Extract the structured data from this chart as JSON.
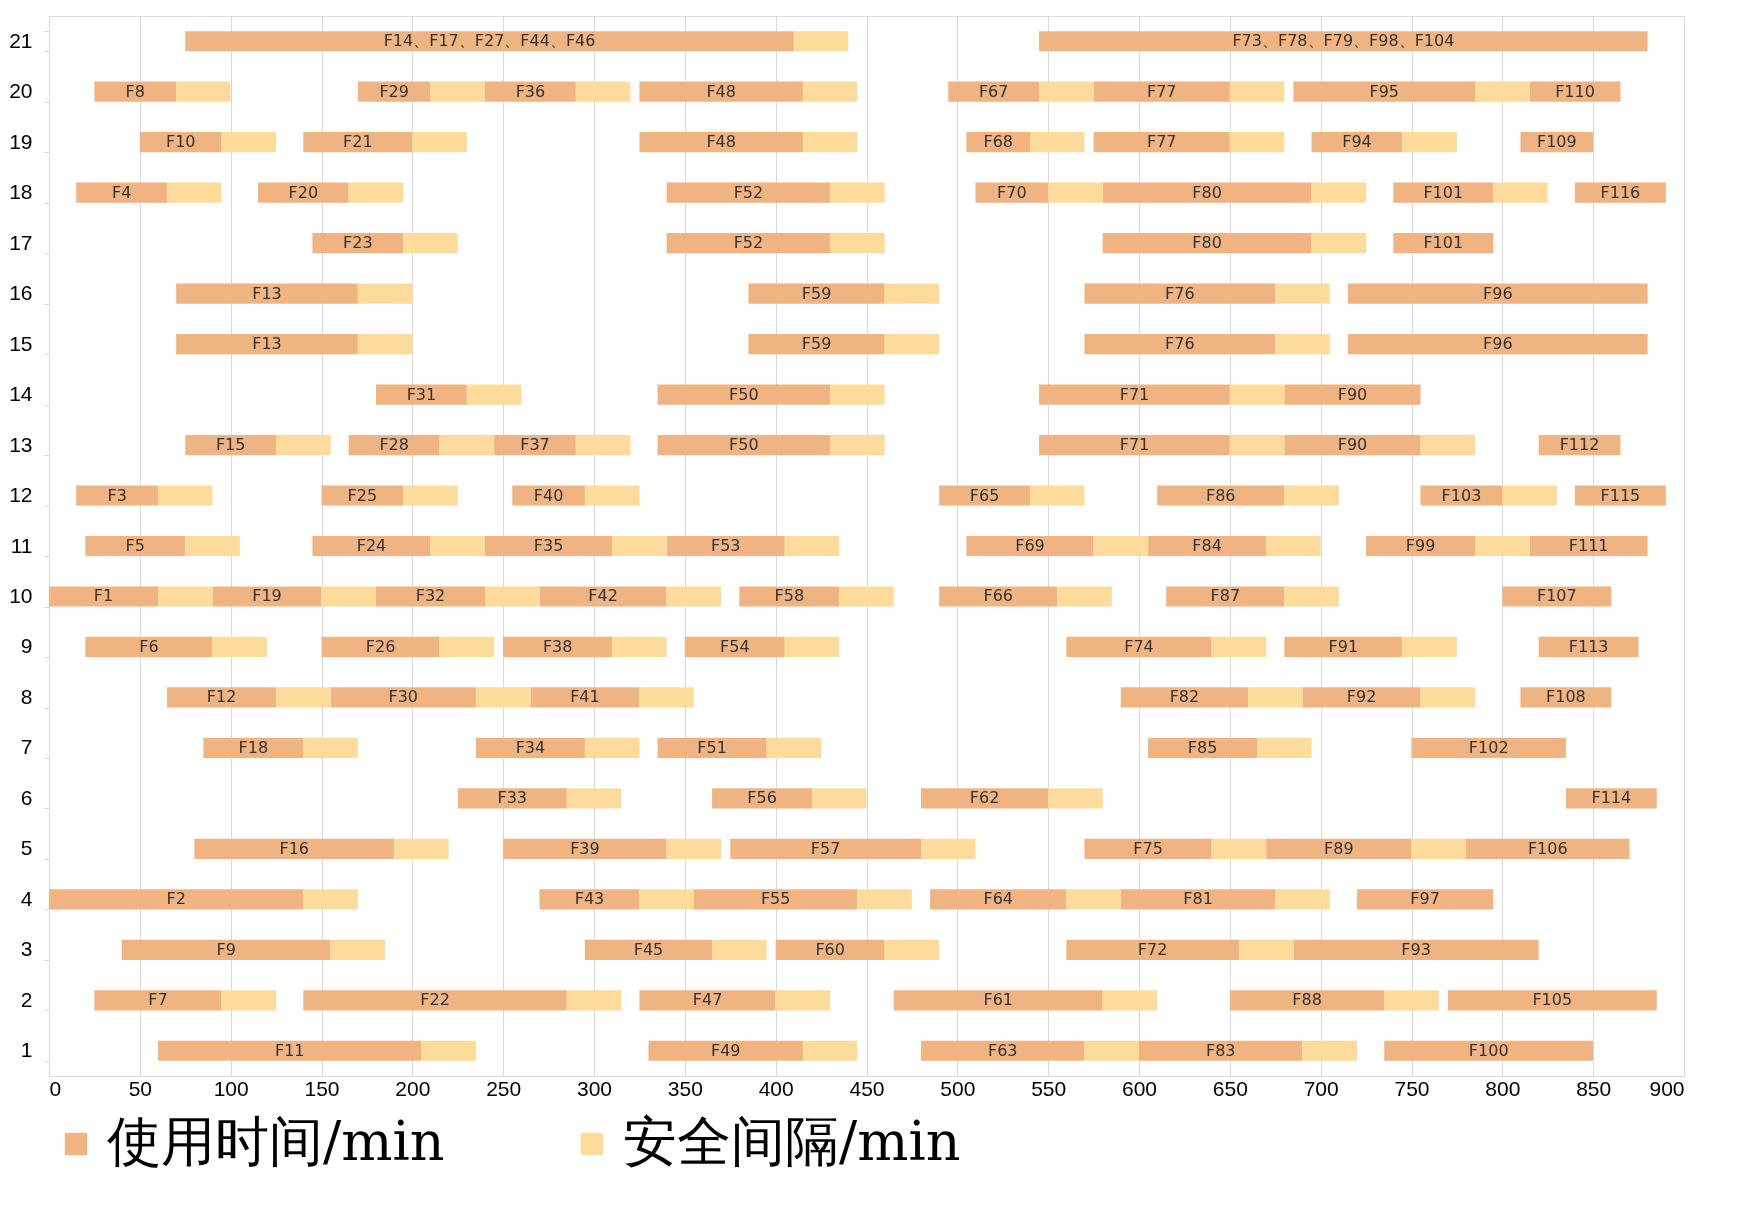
{
  "chart_data": {
    "type": "bar",
    "orientation": "horizontal",
    "legend": "bottom",
    "grid": "x",
    "categories": [
      "21",
      "20",
      "19",
      "18",
      "17",
      "16",
      "15",
      "14",
      "13",
      "12",
      "11",
      "10",
      "9",
      "8",
      "7",
      "6",
      "5",
      "4",
      "3",
      "2",
      "1"
    ],
    "xlim": [
      0,
      900
    ],
    "xticks": [
      0,
      50,
      100,
      150,
      200,
      250,
      300,
      350,
      400,
      450,
      500,
      550,
      600,
      650,
      700,
      750,
      800,
      850,
      900
    ],
    "series": [
      {
        "name": "使用时间/min",
        "color": "#f0b482",
        "base": [
          75,
          25,
          50,
          15,
          145,
          70,
          70,
          180,
          75,
          15,
          20,
          0,
          20,
          65,
          85,
          225,
          80,
          0,
          40,
          25,
          60
        ],
        "values": [
          335,
          45,
          45,
          50,
          50,
          100,
          100,
          50,
          50,
          45,
          55,
          60,
          70,
          60,
          55,
          60,
          110,
          140,
          115,
          70,
          145
        ],
        "value_labels": [
          "F14、F17、F27、F44、F46",
          "F8",
          "F10",
          "F4",
          "F23",
          "F13",
          "F13",
          "F31",
          "F15",
          "F3",
          "F5",
          "F1",
          "F6",
          "F12",
          "F18",
          "F33",
          "F16",
          "F2",
          "F9",
          "F7",
          "F11"
        ]
      },
      {
        "color": "#f0b482",
        "base": [
          545,
          170,
          140,
          115,
          340,
          385,
          385,
          335,
          165,
          150,
          145,
          90,
          150,
          155,
          235,
          365,
          250,
          270,
          295,
          140,
          330
        ],
        "values": [
          335,
          40,
          60,
          50,
          90,
          75,
          75,
          95,
          50,
          45,
          65,
          60,
          65,
          80,
          60,
          55,
          90,
          55,
          70,
          145,
          85
        ],
        "value_labels": [
          "F73、F78、F79、F98、F104",
          "F29",
          "F21",
          "F20",
          "F52",
          "F59",
          "F59",
          "F50",
          "F28",
          "F25",
          "F24",
          "F19",
          "F26",
          "F30",
          "F34",
          "F56",
          "F39",
          "F43",
          "F45",
          "F22",
          "F49"
        ]
      },
      {
        "color": "#f0b482",
        "base": [
          null,
          240,
          325,
          340,
          580,
          570,
          570,
          545,
          245,
          255,
          240,
          180,
          250,
          265,
          335,
          480,
          375,
          355,
          400,
          325,
          480
        ],
        "values": [
          null,
          50,
          90,
          90,
          115,
          105,
          105,
          105,
          45,
          40,
          70,
          60,
          60,
          60,
          60,
          70,
          105,
          90,
          60,
          75,
          90
        ],
        "value_labels": [
          null,
          "F36",
          "F48",
          "F52",
          "F80",
          "F76",
          "F76",
          "F71",
          "F37",
          "F40",
          "F35",
          "F32",
          "F38",
          "F41",
          "F51",
          "F62",
          "F57",
          "F55",
          "F60",
          "F47",
          "F63"
        ]
      },
      {
        "color": "#f0b482",
        "base": [
          null,
          325,
          505,
          510,
          740,
          715,
          715,
          680,
          335,
          490,
          340,
          270,
          350,
          590,
          605,
          835,
          570,
          485,
          560,
          465,
          600
        ],
        "values": [
          null,
          90,
          35,
          40,
          55,
          165,
          165,
          75,
          95,
          50,
          65,
          70,
          55,
          70,
          60,
          50,
          70,
          75,
          95,
          115,
          90
        ],
        "value_labels": [
          null,
          "F48",
          "F68",
          "F70",
          "F101",
          "F96",
          "F96",
          "F90",
          "F50",
          "F65",
          "F53",
          "F42",
          "F54",
          "F82",
          "F85",
          "F114",
          "F75",
          "F64",
          "F72",
          "F61",
          "F83"
        ]
      },
      {
        "color": "#f0b482",
        "base": [
          null,
          495,
          575,
          580,
          null,
          null,
          null,
          null,
          545,
          610,
          505,
          380,
          560,
          690,
          750,
          null,
          670,
          590,
          685,
          650,
          735
        ],
        "values": [
          null,
          50,
          75,
          115,
          null,
          null,
          null,
          null,
          105,
          70,
          70,
          55,
          80,
          65,
          85,
          null,
          80,
          85,
          135,
          85,
          115
        ],
        "value_labels": [
          null,
          "F67",
          "F77",
          "F80",
          null,
          null,
          null,
          null,
          "F71",
          "F86",
          "F69",
          "F58",
          "F74",
          "F92",
          "F102",
          null,
          "F89",
          "F81",
          "F93",
          "F88",
          "F100"
        ]
      },
      {
        "color": "#f0b482",
        "base": [
          null,
          575,
          695,
          740,
          null,
          null,
          null,
          null,
          680,
          755,
          605,
          490,
          680,
          810,
          null,
          null,
          780,
          720,
          null,
          770,
          null
        ],
        "values": [
          null,
          75,
          50,
          55,
          null,
          null,
          null,
          null,
          75,
          45,
          65,
          65,
          65,
          50,
          null,
          null,
          90,
          75,
          null,
          115,
          null
        ],
        "value_labels": [
          null,
          "F77",
          "F94",
          "F101",
          null,
          null,
          null,
          null,
          "F90",
          "F103",
          "F84",
          "F66",
          "F91",
          "F108",
          null,
          null,
          "F106",
          "F97",
          null,
          "F105",
          null
        ]
      },
      {
        "color": "#f0b482",
        "base": [
          null,
          685,
          810,
          840,
          null,
          null,
          null,
          null,
          820,
          840,
          725,
          615,
          820,
          null,
          null,
          null,
          null,
          null,
          null,
          null,
          null
        ],
        "values": [
          null,
          100,
          40,
          50,
          null,
          null,
          null,
          null,
          45,
          50,
          60,
          65,
          55,
          null,
          null,
          null,
          null,
          null,
          null,
          null,
          null
        ],
        "value_labels": [
          null,
          "F95",
          "F109",
          "F116",
          null,
          null,
          null,
          null,
          "F112",
          "F115",
          "F99",
          "F87",
          "F113",
          null,
          null,
          null,
          null,
          null,
          null,
          null,
          null
        ]
      },
      {
        "color": "#f0b482",
        "base": [
          null,
          815,
          null,
          null,
          null,
          null,
          null,
          null,
          null,
          null,
          815,
          800,
          null,
          null,
          null,
          null,
          null,
          null,
          null,
          null,
          null
        ],
        "values": [
          null,
          50,
          null,
          null,
          null,
          null,
          null,
          null,
          null,
          null,
          65,
          60,
          null,
          null,
          null,
          null,
          null,
          null,
          null,
          null,
          null
        ],
        "value_labels": [
          null,
          "F110",
          null,
          null,
          null,
          null,
          null,
          null,
          null,
          null,
          "F111",
          "F107",
          null,
          null,
          null,
          null,
          null,
          null,
          null,
          null,
          null
        ]
      },
      {
        "name": "安全间隔/min",
        "color": "#fddb9b",
        "base": [
          410,
          70,
          95,
          65,
          195,
          170,
          170,
          230,
          125,
          60,
          75,
          60,
          90,
          125,
          140,
          285,
          190,
          140,
          155,
          95,
          205
        ],
        "values": [
          30,
          30,
          30,
          30,
          30,
          30,
          30,
          30,
          30,
          30,
          30,
          30,
          30,
          30,
          30,
          30,
          30,
          30,
          30,
          30,
          30
        ]
      },
      {
        "color": "#fddb9b",
        "base": [
          null,
          210,
          200,
          165,
          430,
          460,
          460,
          430,
          215,
          195,
          210,
          150,
          215,
          235,
          295,
          420,
          340,
          325,
          365,
          285,
          415
        ],
        "values": [
          null,
          30,
          30,
          30,
          30,
          30,
          30,
          30,
          30,
          30,
          30,
          30,
          30,
          30,
          30,
          30,
          30,
          30,
          30,
          30,
          30
        ]
      },
      {
        "color": "#fddb9b",
        "base": [
          null,
          290,
          415,
          430,
          695,
          675,
          675,
          650,
          290,
          295,
          310,
          240,
          310,
          325,
          395,
          550,
          480,
          445,
          460,
          400,
          570
        ],
        "values": [
          null,
          30,
          30,
          30,
          30,
          30,
          30,
          30,
          30,
          30,
          30,
          30,
          30,
          30,
          30,
          30,
          30,
          30,
          30,
          30,
          30
        ]
      },
      {
        "color": "#fddb9b",
        "base": [
          null,
          415,
          540,
          550,
          null,
          null,
          null,
          null,
          430,
          540,
          405,
          340,
          405,
          660,
          665,
          null,
          640,
          560,
          655,
          580,
          690
        ],
        "values": [
          null,
          30,
          30,
          30,
          null,
          null,
          null,
          null,
          30,
          30,
          30,
          30,
          30,
          30,
          30,
          null,
          30,
          30,
          30,
          30,
          30
        ]
      },
      {
        "color": "#fddb9b",
        "base": [
          null,
          545,
          650,
          695,
          null,
          null,
          null,
          null,
          650,
          680,
          575,
          435,
          640,
          755,
          null,
          null,
          750,
          675,
          null,
          735,
          null
        ],
        "values": [
          null,
          30,
          30,
          30,
          null,
          null,
          null,
          null,
          30,
          30,
          30,
          30,
          30,
          30,
          null,
          null,
          30,
          30,
          null,
          30,
          null
        ]
      },
      {
        "color": "#fddb9b",
        "base": [
          null,
          650,
          745,
          795,
          null,
          null,
          null,
          null,
          755,
          800,
          670,
          555,
          745,
          null,
          null,
          null,
          null,
          null,
          null,
          null,
          null
        ],
        "values": [
          null,
          30,
          30,
          30,
          null,
          null,
          null,
          null,
          30,
          30,
          30,
          30,
          30,
          null,
          null,
          null,
          null,
          null,
          null,
          null,
          null
        ]
      },
      {
        "color": "#fddb9b",
        "base": [
          null,
          785,
          null,
          null,
          null,
          null,
          null,
          null,
          null,
          null,
          785,
          680,
          null,
          null,
          null,
          null,
          null,
          null,
          null,
          null,
          null
        ],
        "values": [
          null,
          30,
          null,
          null,
          null,
          null,
          null,
          null,
          null,
          null,
          30,
          30,
          null,
          null,
          null,
          null,
          null,
          null,
          null,
          null,
          null
        ]
      }
    ]
  }
}
